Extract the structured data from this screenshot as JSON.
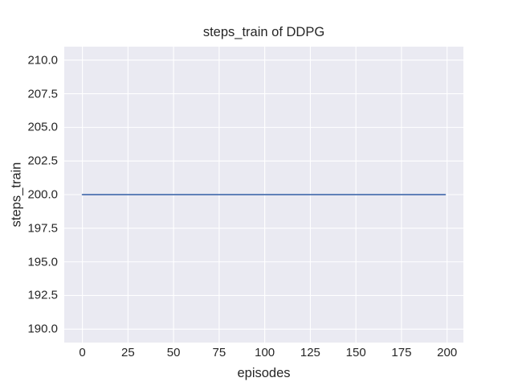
{
  "figure": {
    "background": "#ffffff",
    "text_color": "#262626"
  },
  "chart_data": {
    "type": "line",
    "title": "steps_train of DDPG",
    "xlabel": "episodes",
    "ylabel": "steps_train",
    "xlim": [
      -9.95,
      208.95
    ],
    "ylim": [
      189,
      211
    ],
    "x_tick_labels": [
      "0",
      "25",
      "50",
      "75",
      "100",
      "125",
      "150",
      "175",
      "200"
    ],
    "x_tick_values": [
      0,
      25,
      50,
      75,
      100,
      125,
      150,
      175,
      200
    ],
    "y_tick_labels": [
      "190.0",
      "192.5",
      "195.0",
      "197.5",
      "200.0",
      "202.5",
      "205.0",
      "207.5",
      "210.0"
    ],
    "y_tick_values": [
      190.0,
      192.5,
      195.0,
      197.5,
      200.0,
      202.5,
      205.0,
      207.5,
      210.0
    ],
    "grid": true,
    "legend_position": "none",
    "series": [
      {
        "name": "steps_train",
        "color": "#4c72b0",
        "description": "constant value 200 for every episode from 0 to 199",
        "x": [
          0,
          199
        ],
        "y": [
          200,
          200
        ]
      }
    ],
    "style": {
      "panel_background": "#eaeaf2",
      "grid_color": "#ffffff",
      "line_width": 1.8,
      "grid_width": 1.1
    }
  }
}
